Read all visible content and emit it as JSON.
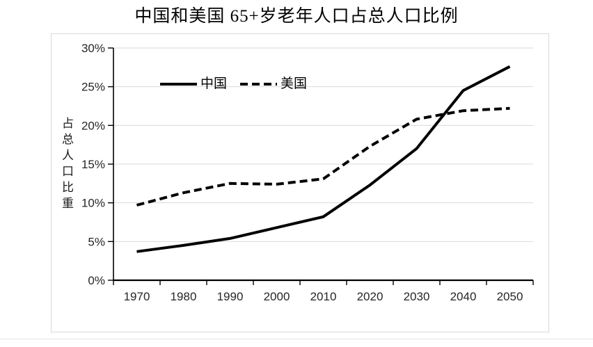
{
  "title": "中国和美国 65+岁老年人口占总人口比例",
  "chart_data": {
    "type": "line",
    "categories": [
      "1970",
      "1980",
      "1990",
      "2000",
      "2010",
      "2020",
      "2030",
      "2040",
      "2050"
    ],
    "series": [
      {
        "key": "china",
        "name": "中国",
        "line_style": "solid",
        "color": "#000000",
        "values": [
          3.7,
          4.5,
          5.4,
          6.8,
          8.2,
          12.3,
          17.0,
          24.5,
          27.6
        ]
      },
      {
        "key": "usa",
        "name": "美国",
        "line_style": "dashed",
        "color": "#000000",
        "values": [
          9.7,
          11.3,
          12.5,
          12.4,
          13.1,
          17.3,
          20.8,
          21.9,
          22.2
        ]
      }
    ],
    "xlabel": "",
    "ylabel": "占总人口比重",
    "ylim": [
      0,
      30
    ],
    "ytick_step": 5,
    "ytick_labels": [
      "0%",
      "5%",
      "10%",
      "15%",
      "20%",
      "25%",
      "30%"
    ],
    "grid": true,
    "legend_position": "top-left-inside",
    "colors": {
      "series": "#000000",
      "grid": "#d9d9d9",
      "axis": "#000000",
      "text": "#262626",
      "frame": "#d9d9d9"
    }
  }
}
